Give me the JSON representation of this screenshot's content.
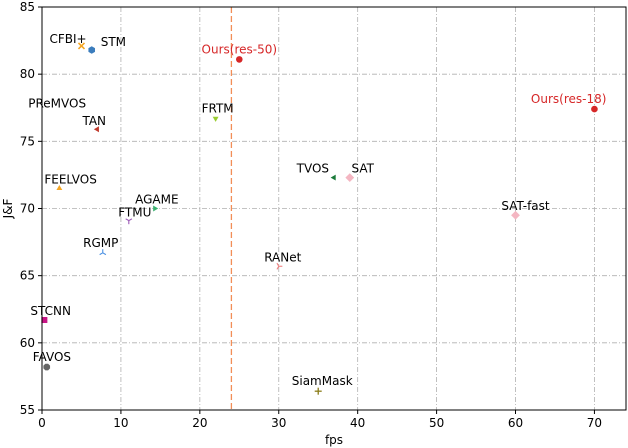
{
  "chart_data": {
    "type": "scatter",
    "xlabel": "fps",
    "ylabel": "J&F",
    "xlim": [
      0,
      74
    ],
    "ylim": [
      55,
      85
    ],
    "xticks": [
      0,
      10,
      20,
      30,
      40,
      50,
      60,
      70
    ],
    "yticks": [
      55,
      60,
      65,
      70,
      75,
      80,
      85
    ],
    "grid": true,
    "reference_line": {
      "x": 24,
      "color": "#f28e57",
      "style": "dashed"
    },
    "points": [
      {
        "label": "CFBI+",
        "x": 5,
        "y": 82.1,
        "color": "#f5a623",
        "marker": "x",
        "label_color": "#000000",
        "label_anchor": "start",
        "dx": -32,
        "dy": -3
      },
      {
        "label": "STM",
        "x": 6.3,
        "y": 81.8,
        "color": "#3b7dbd",
        "marker": "hexagon",
        "label_color": "#000000",
        "label_anchor": "start",
        "dx": 9,
        "dy": -4
      },
      {
        "label": "Ours(res-50)",
        "x": 25,
        "y": 81.1,
        "color": "#d62728",
        "marker": "circle",
        "label_color": "#d62728",
        "label_anchor": "middle",
        "dx": 0,
        "dy": -6
      },
      {
        "label": "Ours(res-18)",
        "x": 70,
        "y": 77.4,
        "color": "#d62728",
        "marker": "circle",
        "label_color": "#d62728",
        "label_anchor": "end",
        "dx": 12,
        "dy": -6
      },
      {
        "label": "PReMVOS",
        "x": 0.03,
        "y": 77.8,
        "color": "#ffffff",
        "marker": "none",
        "label_color": "#000000",
        "label_anchor": "start",
        "dx": -14,
        "dy": 4
      },
      {
        "label": "FRTM",
        "x": 22,
        "y": 76.7,
        "color": "#9acd32",
        "marker": "triangle-down",
        "label_color": "#000000",
        "label_anchor": "middle",
        "dx": 2,
        "dy": -6
      },
      {
        "label": "TAN",
        "x": 7,
        "y": 75.9,
        "color": "#c0392b",
        "marker": "triangle-left",
        "label_color": "#000000",
        "label_anchor": "middle",
        "dx": -3,
        "dy": -4
      },
      {
        "label": "TVOS",
        "x": 37,
        "y": 72.3,
        "color": "#1a7a3a",
        "marker": "triangle-left",
        "label_color": "#000000",
        "label_anchor": "end",
        "dx": -5,
        "dy": -5
      },
      {
        "label": "SAT",
        "x": 39,
        "y": 72.3,
        "color": "#f4b6c2",
        "marker": "diamond",
        "label_color": "#000000",
        "label_anchor": "middle",
        "dx": 13,
        "dy": -5
      },
      {
        "label": "FEELVOS",
        "x": 2.2,
        "y": 71.5,
        "color": "#f5a623",
        "marker": "triangle-up",
        "label_color": "#000000",
        "label_anchor": "start",
        "dx": -15,
        "dy": -5
      },
      {
        "label": "AGAME",
        "x": 14.3,
        "y": 70.0,
        "color": "#3cb371",
        "marker": "triangle-right",
        "label_color": "#000000",
        "label_anchor": "middle",
        "dx": 2,
        "dy": -5
      },
      {
        "label": "SAT-fast",
        "x": 60,
        "y": 69.5,
        "color": "#f4b6c2",
        "marker": "diamond",
        "label_color": "#000000",
        "label_anchor": "middle",
        "dx": 10,
        "dy": -5
      },
      {
        "label": "FTMU",
        "x": 11,
        "y": 69.1,
        "color": "#9b59b6",
        "marker": "tri-down",
        "label_color": "#000000",
        "label_anchor": "middle",
        "dx": 6,
        "dy": -4
      },
      {
        "label": "RGMP",
        "x": 7.7,
        "y": 66.7,
        "color": "#4a90e2",
        "marker": "tri-up",
        "label_color": "#000000",
        "label_anchor": "middle",
        "dx": -2,
        "dy": -6
      },
      {
        "label": "RANet",
        "x": 30,
        "y": 65.7,
        "color": "#f08080",
        "marker": "tri-right",
        "label_color": "#000000",
        "label_anchor": "middle",
        "dx": 4,
        "dy": -5
      },
      {
        "label": "STCNN",
        "x": 0.3,
        "y": 61.7,
        "color": "#c71585",
        "marker": "square",
        "label_color": "#000000",
        "label_anchor": "start",
        "dx": -14,
        "dy": -5
      },
      {
        "label": "FAVOS",
        "x": 0.6,
        "y": 58.2,
        "color": "#666666",
        "marker": "octagon",
        "label_color": "#000000",
        "label_anchor": "start",
        "dx": -14,
        "dy": -6
      },
      {
        "label": "SiamMask",
        "x": 35,
        "y": 56.4,
        "color": "#8b7d1a",
        "marker": "plus",
        "label_color": "#000000",
        "label_anchor": "middle",
        "dx": 4,
        "dy": -6
      }
    ]
  }
}
